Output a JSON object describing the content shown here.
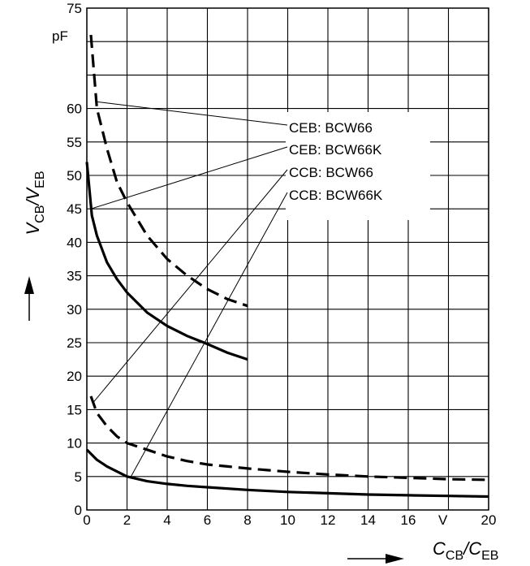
{
  "chart_data": {
    "type": "line",
    "xlabel_parts": [
      "C",
      "CB",
      "/C",
      "EB"
    ],
    "ylabel_parts": [
      "V",
      "CB",
      "/V",
      "EB"
    ],
    "x_unit": "V",
    "y_unit": "pF",
    "xlim": [
      0,
      20
    ],
    "ylim": [
      0,
      75
    ],
    "x_ticks": [
      "0",
      "2",
      "4",
      "6",
      "8",
      "10",
      "12",
      "14",
      "16",
      "20"
    ],
    "y_ticks": [
      "0",
      "5",
      "10",
      "15",
      "20",
      "25",
      "30",
      "35",
      "40",
      "45",
      "50",
      "55",
      "60",
      "75"
    ],
    "grid": true,
    "series": [
      {
        "name": "CEB: BCW66",
        "style": "solid",
        "x": [
          0,
          0.25,
          0.5,
          1,
          1.5,
          2,
          3,
          4,
          5,
          6,
          7,
          8
        ],
        "y": [
          52,
          44,
          41,
          37,
          34.5,
          32.5,
          29.5,
          27.5,
          26,
          24.8,
          23.5,
          22.5
        ]
      },
      {
        "name": "CEB: BCW66K",
        "style": "dashed",
        "x": [
          0.2,
          0.5,
          1,
          1.5,
          2,
          3,
          4,
          5,
          6,
          7,
          8
        ],
        "y": [
          71,
          60,
          54,
          49,
          46,
          41,
          37.5,
          35,
          33,
          31.5,
          30.5
        ]
      },
      {
        "name": "CCB: BCW66",
        "style": "solid",
        "x": [
          0,
          0.5,
          1,
          2,
          3,
          4,
          5,
          6,
          8,
          10,
          12,
          14,
          16,
          18,
          20
        ],
        "y": [
          9,
          7.5,
          6.5,
          5,
          4.3,
          3.9,
          3.6,
          3.4,
          3,
          2.7,
          2.5,
          2.3,
          2.2,
          2.1,
          2
        ]
      },
      {
        "name": "CCB: BCW66K",
        "style": "dashed",
        "x": [
          0.2,
          0.5,
          1,
          1.5,
          2,
          3,
          4,
          5,
          6,
          7,
          8,
          10,
          12,
          14,
          16,
          18,
          20
        ],
        "y": [
          17,
          14.5,
          12.5,
          11,
          10,
          9,
          8,
          7.3,
          6.8,
          6.5,
          6.2,
          5.7,
          5.3,
          5,
          4.8,
          4.6,
          4.5
        ]
      }
    ],
    "legend": [
      {
        "text": "CEB: BCW66",
        "points_to": [
          0.5,
          61
        ]
      },
      {
        "text": "CEB: BCW66K",
        "points_to": [
          0.2,
          45
        ]
      },
      {
        "text": "CCB: BCW66",
        "points_to": [
          0.3,
          16
        ]
      },
      {
        "text": "CCB: BCW66K",
        "points_to": [
          2.2,
          5
        ]
      }
    ]
  }
}
